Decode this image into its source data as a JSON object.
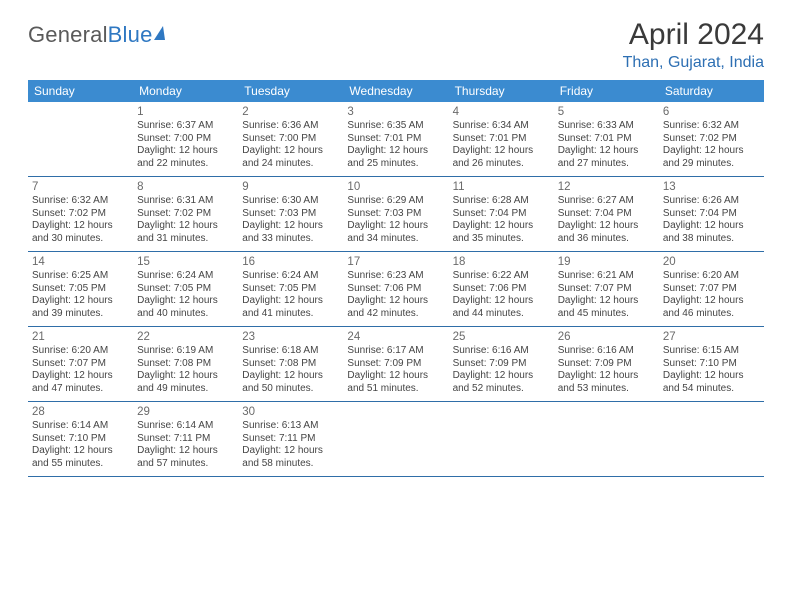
{
  "brand": {
    "name_gray": "General",
    "name_blue": "Blue"
  },
  "title": "April 2024",
  "location": "Than, Gujarat, India",
  "colors": {
    "header_bg": "#3b8bd0",
    "header_text": "#ffffff",
    "week_border": "#2f6ea8",
    "title_text": "#3a3a3a",
    "location_text": "#2d6fb3",
    "logo_gray": "#5a5a5a",
    "logo_blue": "#2f78c2",
    "body_text": "#444444",
    "daynum_text": "#6a6a6a",
    "background": "#ffffff"
  },
  "weekdays": [
    "Sunday",
    "Monday",
    "Tuesday",
    "Wednesday",
    "Thursday",
    "Friday",
    "Saturday"
  ],
  "weeks": [
    [
      null,
      {
        "n": "1",
        "sunrise": "Sunrise: 6:37 AM",
        "sunset": "Sunset: 7:00 PM",
        "d1": "Daylight: 12 hours",
        "d2": "and 22 minutes."
      },
      {
        "n": "2",
        "sunrise": "Sunrise: 6:36 AM",
        "sunset": "Sunset: 7:00 PM",
        "d1": "Daylight: 12 hours",
        "d2": "and 24 minutes."
      },
      {
        "n": "3",
        "sunrise": "Sunrise: 6:35 AM",
        "sunset": "Sunset: 7:01 PM",
        "d1": "Daylight: 12 hours",
        "d2": "and 25 minutes."
      },
      {
        "n": "4",
        "sunrise": "Sunrise: 6:34 AM",
        "sunset": "Sunset: 7:01 PM",
        "d1": "Daylight: 12 hours",
        "d2": "and 26 minutes."
      },
      {
        "n": "5",
        "sunrise": "Sunrise: 6:33 AM",
        "sunset": "Sunset: 7:01 PM",
        "d1": "Daylight: 12 hours",
        "d2": "and 27 minutes."
      },
      {
        "n": "6",
        "sunrise": "Sunrise: 6:32 AM",
        "sunset": "Sunset: 7:02 PM",
        "d1": "Daylight: 12 hours",
        "d2": "and 29 minutes."
      }
    ],
    [
      {
        "n": "7",
        "sunrise": "Sunrise: 6:32 AM",
        "sunset": "Sunset: 7:02 PM",
        "d1": "Daylight: 12 hours",
        "d2": "and 30 minutes."
      },
      {
        "n": "8",
        "sunrise": "Sunrise: 6:31 AM",
        "sunset": "Sunset: 7:02 PM",
        "d1": "Daylight: 12 hours",
        "d2": "and 31 minutes."
      },
      {
        "n": "9",
        "sunrise": "Sunrise: 6:30 AM",
        "sunset": "Sunset: 7:03 PM",
        "d1": "Daylight: 12 hours",
        "d2": "and 33 minutes."
      },
      {
        "n": "10",
        "sunrise": "Sunrise: 6:29 AM",
        "sunset": "Sunset: 7:03 PM",
        "d1": "Daylight: 12 hours",
        "d2": "and 34 minutes."
      },
      {
        "n": "11",
        "sunrise": "Sunrise: 6:28 AM",
        "sunset": "Sunset: 7:04 PM",
        "d1": "Daylight: 12 hours",
        "d2": "and 35 minutes."
      },
      {
        "n": "12",
        "sunrise": "Sunrise: 6:27 AM",
        "sunset": "Sunset: 7:04 PM",
        "d1": "Daylight: 12 hours",
        "d2": "and 36 minutes."
      },
      {
        "n": "13",
        "sunrise": "Sunrise: 6:26 AM",
        "sunset": "Sunset: 7:04 PM",
        "d1": "Daylight: 12 hours",
        "d2": "and 38 minutes."
      }
    ],
    [
      {
        "n": "14",
        "sunrise": "Sunrise: 6:25 AM",
        "sunset": "Sunset: 7:05 PM",
        "d1": "Daylight: 12 hours",
        "d2": "and 39 minutes."
      },
      {
        "n": "15",
        "sunrise": "Sunrise: 6:24 AM",
        "sunset": "Sunset: 7:05 PM",
        "d1": "Daylight: 12 hours",
        "d2": "and 40 minutes."
      },
      {
        "n": "16",
        "sunrise": "Sunrise: 6:24 AM",
        "sunset": "Sunset: 7:05 PM",
        "d1": "Daylight: 12 hours",
        "d2": "and 41 minutes."
      },
      {
        "n": "17",
        "sunrise": "Sunrise: 6:23 AM",
        "sunset": "Sunset: 7:06 PM",
        "d1": "Daylight: 12 hours",
        "d2": "and 42 minutes."
      },
      {
        "n": "18",
        "sunrise": "Sunrise: 6:22 AM",
        "sunset": "Sunset: 7:06 PM",
        "d1": "Daylight: 12 hours",
        "d2": "and 44 minutes."
      },
      {
        "n": "19",
        "sunrise": "Sunrise: 6:21 AM",
        "sunset": "Sunset: 7:07 PM",
        "d1": "Daylight: 12 hours",
        "d2": "and 45 minutes."
      },
      {
        "n": "20",
        "sunrise": "Sunrise: 6:20 AM",
        "sunset": "Sunset: 7:07 PM",
        "d1": "Daylight: 12 hours",
        "d2": "and 46 minutes."
      }
    ],
    [
      {
        "n": "21",
        "sunrise": "Sunrise: 6:20 AM",
        "sunset": "Sunset: 7:07 PM",
        "d1": "Daylight: 12 hours",
        "d2": "and 47 minutes."
      },
      {
        "n": "22",
        "sunrise": "Sunrise: 6:19 AM",
        "sunset": "Sunset: 7:08 PM",
        "d1": "Daylight: 12 hours",
        "d2": "and 49 minutes."
      },
      {
        "n": "23",
        "sunrise": "Sunrise: 6:18 AM",
        "sunset": "Sunset: 7:08 PM",
        "d1": "Daylight: 12 hours",
        "d2": "and 50 minutes."
      },
      {
        "n": "24",
        "sunrise": "Sunrise: 6:17 AM",
        "sunset": "Sunset: 7:09 PM",
        "d1": "Daylight: 12 hours",
        "d2": "and 51 minutes."
      },
      {
        "n": "25",
        "sunrise": "Sunrise: 6:16 AM",
        "sunset": "Sunset: 7:09 PM",
        "d1": "Daylight: 12 hours",
        "d2": "and 52 minutes."
      },
      {
        "n": "26",
        "sunrise": "Sunrise: 6:16 AM",
        "sunset": "Sunset: 7:09 PM",
        "d1": "Daylight: 12 hours",
        "d2": "and 53 minutes."
      },
      {
        "n": "27",
        "sunrise": "Sunrise: 6:15 AM",
        "sunset": "Sunset: 7:10 PM",
        "d1": "Daylight: 12 hours",
        "d2": "and 54 minutes."
      }
    ],
    [
      {
        "n": "28",
        "sunrise": "Sunrise: 6:14 AM",
        "sunset": "Sunset: 7:10 PM",
        "d1": "Daylight: 12 hours",
        "d2": "and 55 minutes."
      },
      {
        "n": "29",
        "sunrise": "Sunrise: 6:14 AM",
        "sunset": "Sunset: 7:11 PM",
        "d1": "Daylight: 12 hours",
        "d2": "and 57 minutes."
      },
      {
        "n": "30",
        "sunrise": "Sunrise: 6:13 AM",
        "sunset": "Sunset: 7:11 PM",
        "d1": "Daylight: 12 hours",
        "d2": "and 58 minutes."
      },
      null,
      null,
      null,
      null
    ]
  ]
}
